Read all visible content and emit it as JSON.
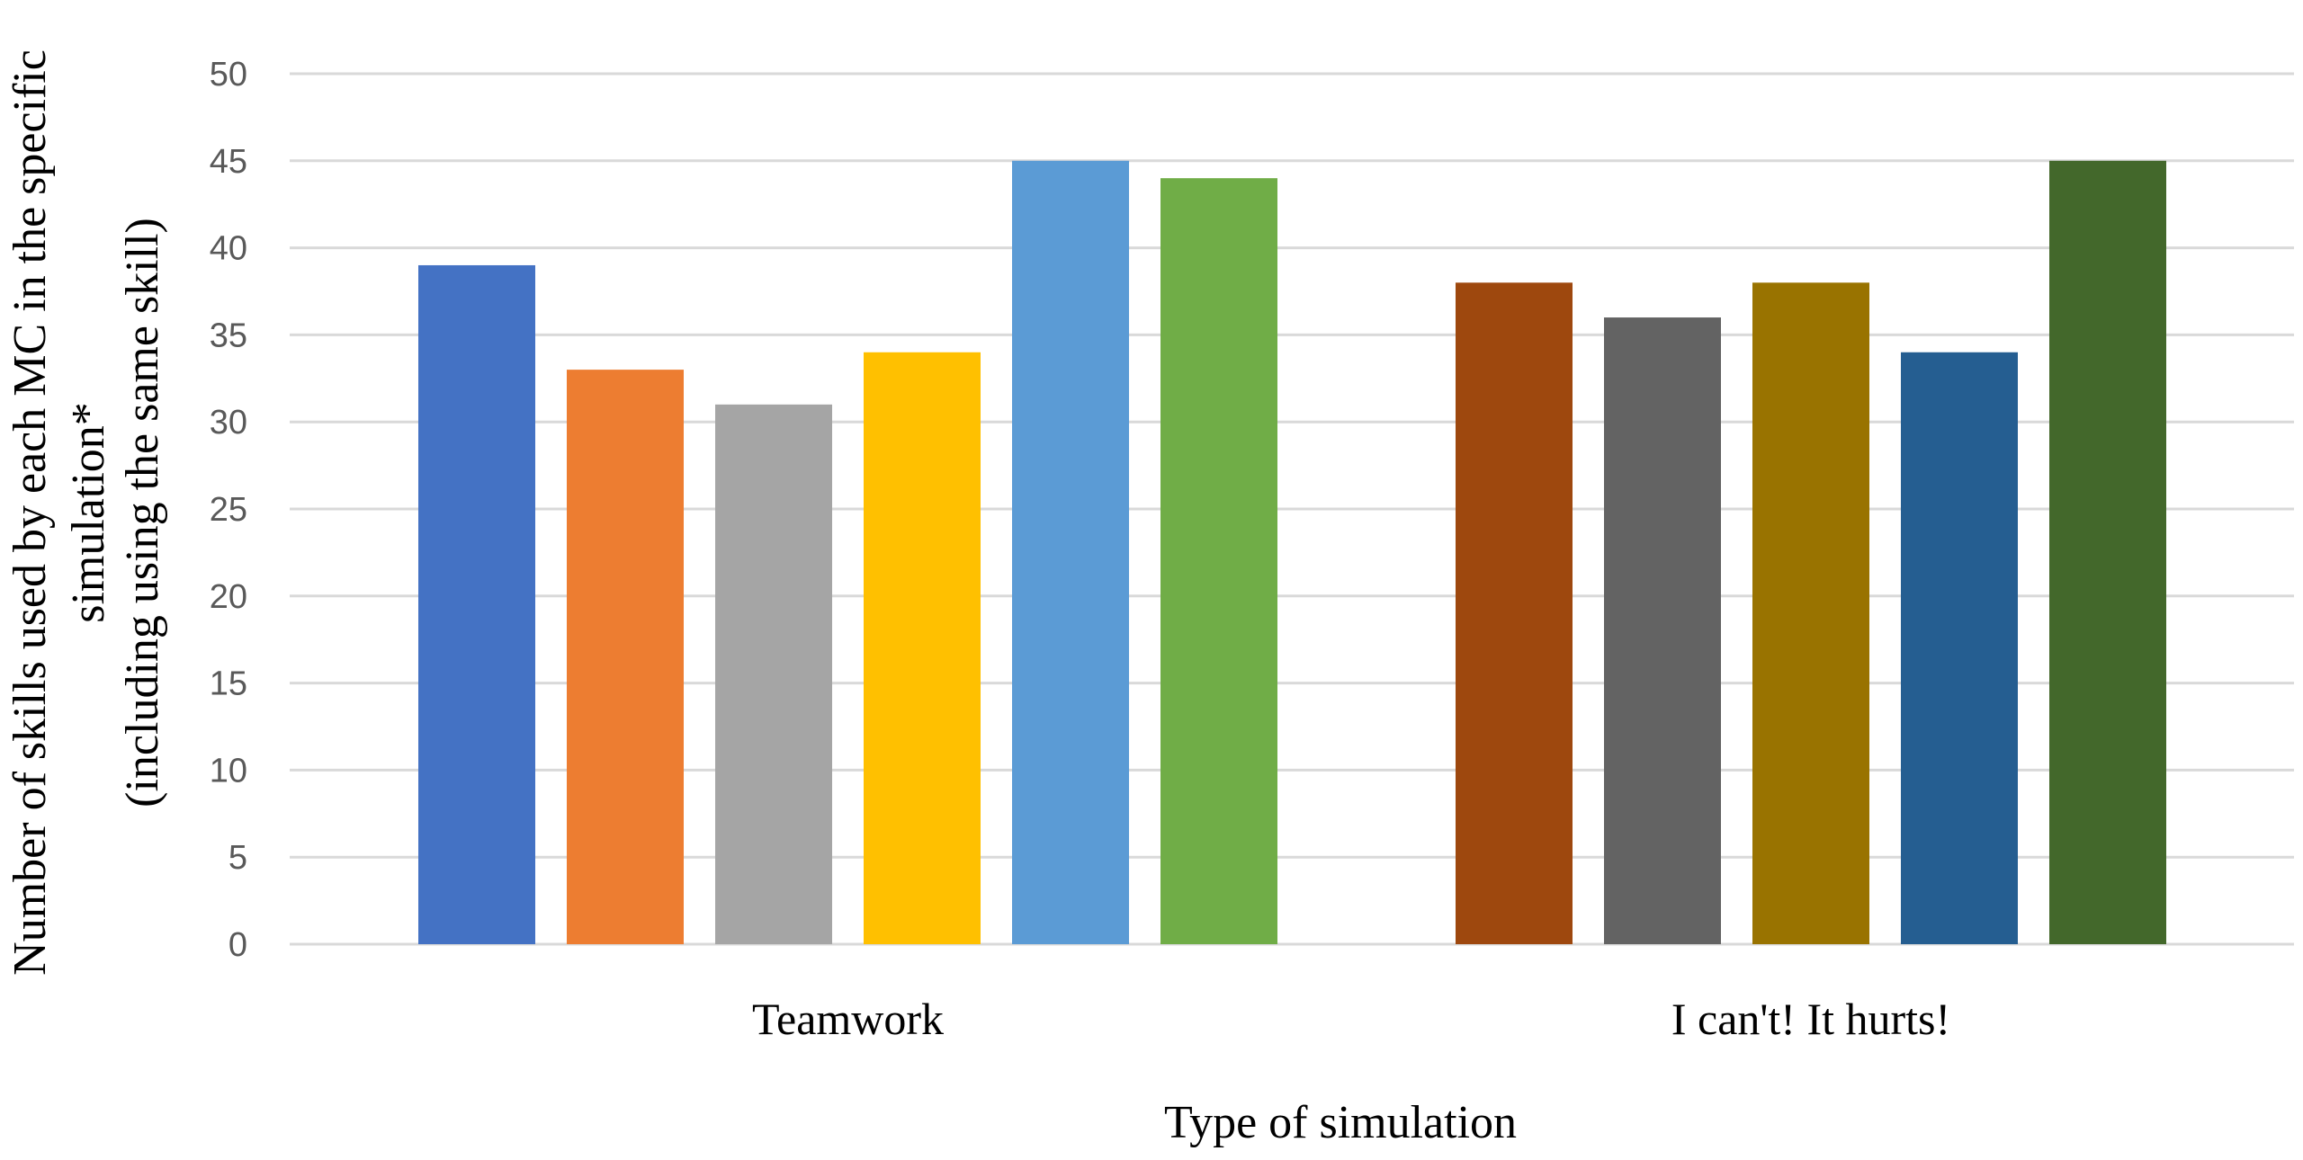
{
  "chart_data": {
    "type": "bar",
    "categories": [
      "Teamwork",
      "I can't! It hurts!"
    ],
    "groups": [
      {
        "category": "Teamwork",
        "values": [
          39,
          33,
          31,
          34,
          45,
          44
        ],
        "colors": [
          "#4472C4",
          "#ED7D31",
          "#A5A5A5",
          "#FFC000",
          "#5B9BD5",
          "#70AD47"
        ]
      },
      {
        "category": "I can't! It hurts!",
        "values": [
          38,
          36,
          38,
          34,
          45
        ],
        "colors": [
          "#9E480E",
          "#636363",
          "#997300",
          "#255E91",
          "#43682B"
        ]
      }
    ],
    "xlabel": "Type of simulation",
    "ylabel_lines": [
      "Number of  skills used by each MC in the specific",
      "simulation*",
      "(including using the same  skill)"
    ],
    "ylim": [
      0,
      50
    ],
    "yticks": [
      "0",
      "5",
      "10",
      "15",
      "20",
      "25",
      "30",
      "35",
      "40",
      "45",
      "50"
    ],
    "grid": true,
    "grid_color": "#D9D9D9"
  }
}
